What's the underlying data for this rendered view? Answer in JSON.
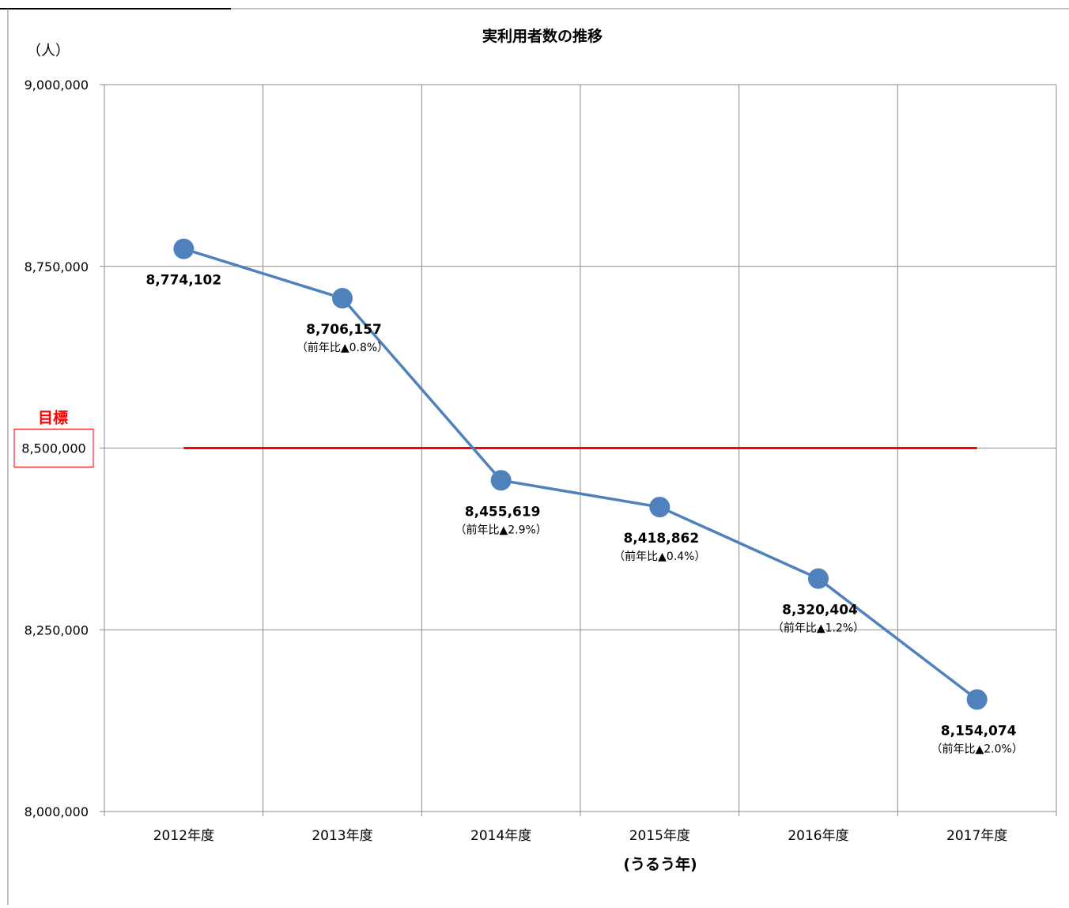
{
  "chart_data": {
    "type": "line",
    "title": "実利用者数の推移",
    "ylabel": "（人）",
    "xlabel": "(うるう年)",
    "categories": [
      "2012年度",
      "2013年度",
      "2014年度",
      "2015年度",
      "2016年度",
      "2017年度"
    ],
    "ylim": [
      8000000,
      9000000
    ],
    "yticks": [
      8000000,
      8250000,
      8500000,
      8750000,
      9000000
    ],
    "ytick_labels": [
      "8,000,000",
      "8,250,000",
      "8,500,000",
      "8,750,000",
      "9,000,000"
    ],
    "grid": true,
    "series": [
      {
        "values": [
          8774102,
          8706157,
          8455619,
          8418862,
          8320404,
          8154074
        ],
        "value_labels": [
          "8,774,102",
          "8,706,157",
          "8,455,619",
          "8,418,862",
          "8,320,404",
          "8,154,074"
        ],
        "change_labels": [
          "",
          "（前年比▲0.8%）",
          "（前年比▲2.9%）",
          "（前年比▲0.4%）",
          "（前年比▲1.2%）",
          "（前年比▲2.0%）"
        ],
        "color": "#4F81BD"
      }
    ],
    "target": {
      "label": "目標",
      "value": 8500000,
      "value_label": "8,500,000",
      "color": "#FF0000"
    }
  }
}
